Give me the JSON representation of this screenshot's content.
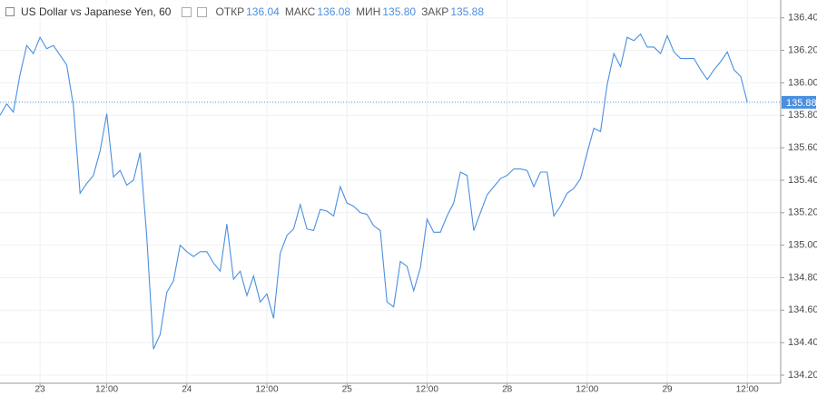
{
  "header": {
    "title": "US Dollar vs Japanese Yen, 60",
    "fields": [
      {
        "label": "ОТКР",
        "value": "136.04"
      },
      {
        "label": "МАКС",
        "value": "136.08"
      },
      {
        "label": "МИН",
        "value": "135.80"
      },
      {
        "label": "ЗАКР",
        "value": "135.88"
      }
    ]
  },
  "chart_data": {
    "type": "line",
    "x": [
      0,
      1,
      2,
      3,
      4,
      5,
      6,
      7,
      8,
      9,
      10,
      11,
      12,
      13,
      14,
      15,
      16,
      17,
      18,
      19,
      20,
      21,
      22,
      23,
      24,
      25,
      26,
      27,
      28,
      29,
      30,
      31,
      32,
      33,
      34,
      35,
      36,
      37,
      38,
      39,
      40,
      41,
      42,
      43,
      44,
      45,
      46,
      47,
      48,
      49,
      50,
      51,
      52,
      53,
      54,
      55,
      56,
      57,
      58,
      59,
      60,
      61,
      62,
      63,
      64,
      65,
      66,
      67,
      68,
      69,
      70,
      71,
      72,
      73,
      74,
      75,
      76,
      77,
      78,
      79,
      80,
      81,
      82,
      83,
      84,
      85,
      86,
      87,
      88,
      89,
      90,
      91,
      92,
      93,
      94,
      95,
      96,
      97,
      98,
      99,
      100,
      101,
      102,
      103,
      104,
      105,
      106,
      107,
      108,
      109,
      110,
      111,
      112
    ],
    "series": [
      {
        "name": "USDJPY",
        "color": "#4a8fe0",
        "values": [
          135.8,
          135.87,
          135.82,
          136.05,
          136.23,
          136.18,
          136.28,
          136.21,
          136.23,
          136.17,
          136.11,
          135.86,
          135.32,
          135.38,
          135.43,
          135.58,
          135.81,
          135.42,
          135.46,
          135.37,
          135.4,
          135.57,
          135.05,
          134.36,
          134.45,
          134.71,
          134.78,
          135.0,
          134.96,
          134.93,
          134.96,
          134.96,
          134.89,
          134.84,
          135.13,
          134.79,
          134.84,
          134.69,
          134.81,
          134.65,
          134.7,
          134.55,
          134.95,
          135.06,
          135.1,
          135.25,
          135.1,
          135.09,
          135.22,
          135.21,
          135.18,
          135.36,
          135.26,
          135.24,
          135.2,
          135.19,
          135.12,
          135.09,
          134.65,
          134.62,
          134.9,
          134.87,
          134.72,
          134.86,
          135.16,
          135.08,
          135.08,
          135.18,
          135.26,
          135.45,
          135.43,
          135.09,
          135.2,
          135.31,
          135.36,
          135.41,
          135.43,
          135.47,
          135.47,
          135.46,
          135.36,
          135.45,
          135.45,
          135.18,
          135.24,
          135.32,
          135.35,
          135.41,
          135.57,
          135.72,
          135.7,
          135.99,
          136.18,
          136.1,
          136.28,
          136.26,
          136.3,
          136.22,
          136.22,
          136.18,
          136.29,
          136.19,
          136.15,
          136.15,
          136.15,
          136.08,
          136.02,
          136.08,
          136.13,
          136.19,
          136.08,
          136.04,
          135.88
        ]
      }
    ],
    "xlim": [
      0,
      117
    ],
    "xticks": [
      {
        "value": 6,
        "label": "23"
      },
      {
        "value": 16,
        "label": "12:00"
      },
      {
        "value": 28,
        "label": "24"
      },
      {
        "value": 40,
        "label": "12:00"
      },
      {
        "value": 52,
        "label": "25"
      },
      {
        "value": 64,
        "label": "12:00"
      },
      {
        "value": 76,
        "label": "28"
      },
      {
        "value": 88,
        "label": "12:00"
      },
      {
        "value": 100,
        "label": "29"
      },
      {
        "value": 112,
        "label": "12:00"
      }
    ],
    "ylim": [
      134.15,
      136.51
    ],
    "yticks": [
      {
        "value": 134.2,
        "label": "134.20"
      },
      {
        "value": 134.4,
        "label": "134.40"
      },
      {
        "value": 134.6,
        "label": "134.60"
      },
      {
        "value": 134.8,
        "label": "134.80"
      },
      {
        "value": 135,
        "label": "135.00"
      },
      {
        "value": 135.2,
        "label": "135.20"
      },
      {
        "value": 135.4,
        "label": "135.40"
      },
      {
        "value": 135.6,
        "label": "135.60"
      },
      {
        "value": 135.8,
        "label": "135.80"
      },
      {
        "value": 136,
        "label": "136.00"
      },
      {
        "value": 136.2,
        "label": "136.20"
      },
      {
        "value": 136.4,
        "label": "136.40"
      }
    ],
    "current_price": 135.88,
    "grid": true
  }
}
